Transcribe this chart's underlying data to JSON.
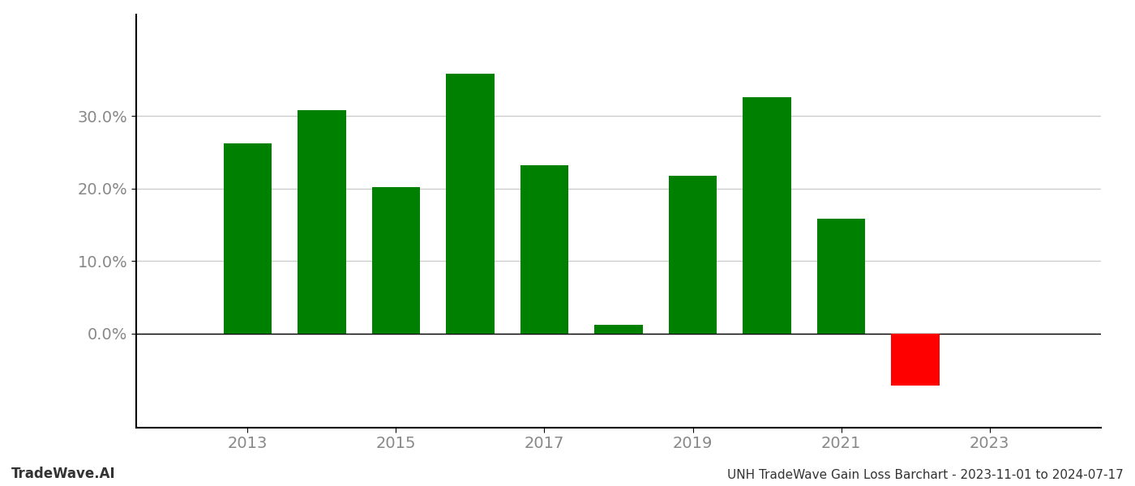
{
  "years": [
    2013,
    2014,
    2015,
    2016,
    2017,
    2018,
    2019,
    2020,
    2021,
    2022
  ],
  "values": [
    0.262,
    0.308,
    0.202,
    0.358,
    0.232,
    0.012,
    0.218,
    0.326,
    0.158,
    -0.072
  ],
  "bar_color_positive": "#008000",
  "bar_color_negative": "#ff0000",
  "background_color": "#ffffff",
  "tick_color": "#888888",
  "grid_color": "#cccccc",
  "xlabel_ticks": [
    2013,
    2015,
    2017,
    2019,
    2021,
    2023
  ],
  "ylim_min": -0.13,
  "ylim_max": 0.44,
  "footer_left": "TradeWave.AI",
  "footer_right": "UNH TradeWave Gain Loss Barchart - 2023-11-01 to 2024-07-17",
  "bar_width": 0.65,
  "ytick_values": [
    0.0,
    0.1,
    0.2,
    0.3
  ],
  "spine_color": "#000000",
  "xlim_min": 2011.5,
  "xlim_max": 2024.5
}
